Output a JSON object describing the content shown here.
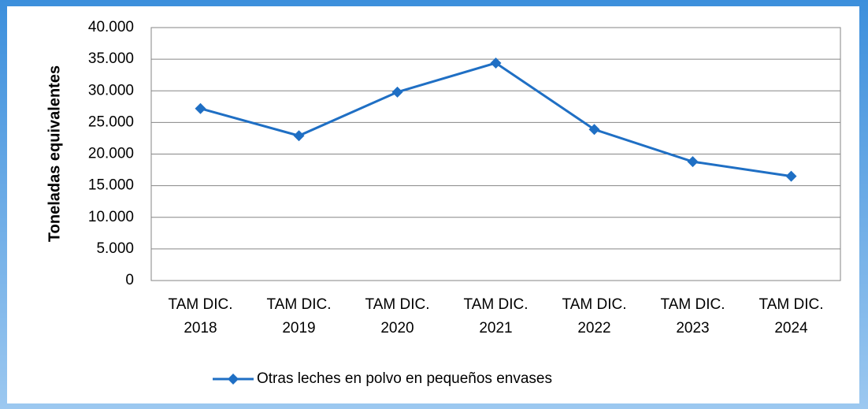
{
  "chart_data": {
    "type": "line",
    "y_axis_label": "Toneladas equivalentes",
    "categories": [
      "TAM DIC. 2018",
      "TAM DIC. 2019",
      "TAM DIC. 2020",
      "TAM DIC. 2021",
      "TAM DIC. 2022",
      "TAM DIC. 2023",
      "TAM DIC. 2024"
    ],
    "series": [
      {
        "name": "Otras leches en polvo en pequeños envases",
        "color": "#1f6fc4",
        "values": [
          27200,
          22900,
          29800,
          34400,
          23900,
          18800,
          16500
        ]
      }
    ],
    "ylim": [
      0,
      40000
    ],
    "yticks": [
      0,
      {
        "value": 5000,
        "label": "5.000"
      },
      {
        "value": 10000,
        "label": "10.000"
      },
      {
        "value": 15000,
        "label": "15.000"
      },
      {
        "value": 20000,
        "label": "20.000"
      },
      {
        "value": 25000,
        "label": "25.000"
      },
      {
        "value": 30000,
        "label": "30.000"
      },
      {
        "value": 35000,
        "label": "35.000"
      },
      {
        "value": 40000,
        "label": "40.000"
      }
    ],
    "grid": true,
    "legend": "bottom"
  }
}
